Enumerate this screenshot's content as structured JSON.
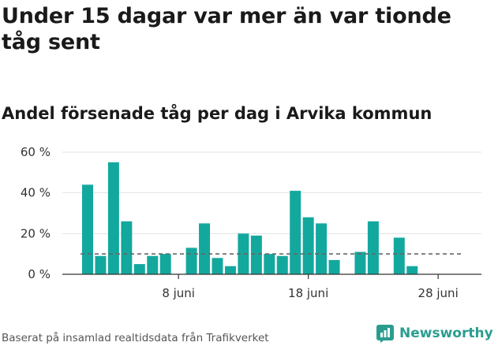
{
  "title": "Under 15 dagar var mer än var tionde tåg sent",
  "subtitle": "Andel försenade tåg per dag i Arvika kommun",
  "source": "Baserat på insamlad realtidsdata från Trafikverket",
  "brand": {
    "name": "Newsworthy",
    "logo_icon": "bar-chart-icon"
  },
  "colors": {
    "bar": "#13a89e",
    "reference": "#666666",
    "grid": "#e3e3e3",
    "axis": "#333333",
    "brand": "#2a9d8f"
  },
  "chart_data": {
    "type": "bar",
    "title": "Andel försenade tåg per dag i Arvika kommun",
    "xlabel": "",
    "ylabel": "",
    "ylim": [
      0,
      60
    ],
    "yticks": [
      0,
      20,
      40,
      60
    ],
    "ytick_labels": [
      "0 %",
      "20 %",
      "40 %",
      "60 %"
    ],
    "categories": [
      "1 juni",
      "2 juni",
      "3 juni",
      "4 juni",
      "5 juni",
      "6 juni",
      "7 juni",
      "8 juni",
      "9 juni",
      "10 juni",
      "11 juni",
      "12 juni",
      "13 juni",
      "14 juni",
      "15 juni",
      "16 juni",
      "17 juni",
      "18 juni",
      "19 juni",
      "20 juni",
      "21 juni",
      "22 juni",
      "23 juni",
      "24 juni",
      "25 juni",
      "26 juni",
      "27 juni",
      "28 juni",
      "29 juni",
      "30 juni"
    ],
    "values": [
      44,
      9,
      55,
      26,
      5,
      9,
      10,
      null,
      13,
      25,
      8,
      4,
      20,
      19,
      10,
      9,
      41,
      28,
      25,
      7,
      null,
      11,
      26,
      null,
      18,
      4,
      null,
      null,
      null,
      null
    ],
    "xtick_labels": [
      {
        "at": "8 juni",
        "label": "8 juni"
      },
      {
        "at": "18 juni",
        "label": "18 juni"
      },
      {
        "at": "28 juni",
        "label": "28 juni"
      }
    ],
    "reference_line": {
      "value": 10,
      "style": "dashed"
    },
    "grid": true
  }
}
